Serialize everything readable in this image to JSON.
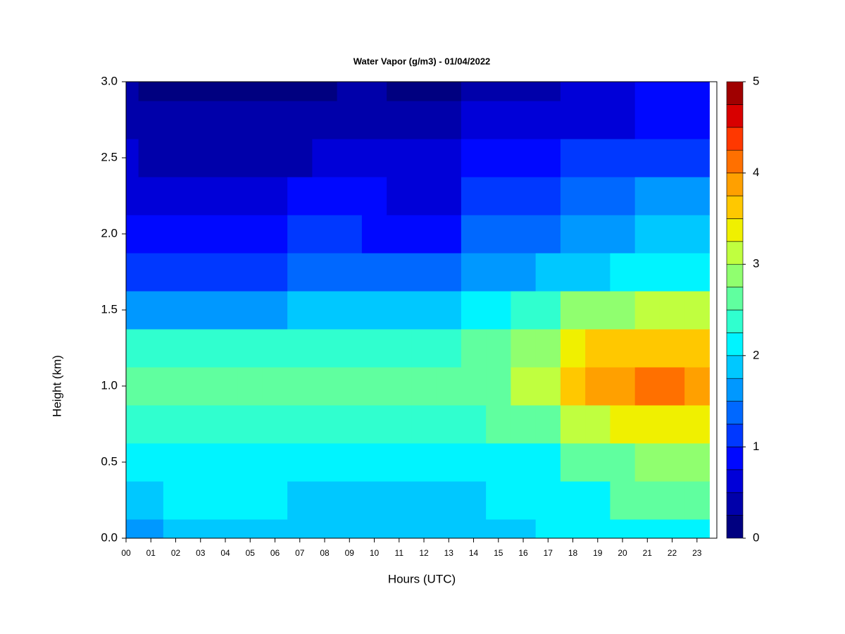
{
  "chart_data": {
    "type": "contour",
    "title": "Water Vapor (g/m3) - 01/04/2022",
    "x_label": "Hours (UTC)",
    "y_label": "Height (km)",
    "x": [
      0,
      1,
      2,
      3,
      4,
      5,
      6,
      7,
      8,
      9,
      10,
      11,
      12,
      13,
      14,
      15,
      16,
      17,
      18,
      19,
      20,
      21,
      22,
      23
    ],
    "y": [
      0,
      0.25,
      0.5,
      0.75,
      1,
      1.25,
      1.5,
      1.75,
      2,
      2.25,
      2.5,
      2.75,
      3
    ],
    "z": [
      [
        1.6,
        1.6,
        1.85,
        1.85,
        1.85,
        1.85,
        1.85,
        1.75,
        1.75,
        1.75,
        1.75,
        1.75,
        1.75,
        1.75,
        1.75,
        1.75,
        1.75,
        2.1,
        2.1,
        2.1,
        2.1,
        2.1,
        2.1,
        2.1
      ],
      [
        1.8,
        1.8,
        2.1,
        2.1,
        2.1,
        2.1,
        2.1,
        1.95,
        1.95,
        1.95,
        1.95,
        1.95,
        1.95,
        1.95,
        1.95,
        2.0,
        2.05,
        2.2,
        2.2,
        2.2,
        2.5,
        2.5,
        2.5,
        2.5
      ],
      [
        2.2,
        2.2,
        2.2,
        2.2,
        2.2,
        2.2,
        2.2,
        2.05,
        2.05,
        2.05,
        2.05,
        2.05,
        2.05,
        2.05,
        2.05,
        2.2,
        2.2,
        2.2,
        2.5,
        2.5,
        2.5,
        2.8,
        2.8,
        2.8
      ],
      [
        2.4,
        2.4,
        2.4,
        2.4,
        2.4,
        2.4,
        2.4,
        2.3,
        2.3,
        2.3,
        2.3,
        2.3,
        2.3,
        2.3,
        2.3,
        2.5,
        2.7,
        2.7,
        3.1,
        3.1,
        3.4,
        3.4,
        3.4,
        3.4
      ],
      [
        2.6,
        2.6,
        2.6,
        2.6,
        2.6,
        2.6,
        2.6,
        2.5,
        2.5,
        2.5,
        2.5,
        2.5,
        2.5,
        2.5,
        2.7,
        2.7,
        3.0,
        3.0,
        3.6,
        3.9,
        3.9,
        4.2,
        4.0,
        3.9
      ],
      [
        2.3,
        2.3,
        2.3,
        2.3,
        2.3,
        2.3,
        2.3,
        2.3,
        2.3,
        2.3,
        2.3,
        2.3,
        2.3,
        2.3,
        2.5,
        2.5,
        2.8,
        2.8,
        3.4,
        3.7,
        3.7,
        3.7,
        3.6,
        3.6
      ],
      [
        1.7,
        1.7,
        1.7,
        1.7,
        1.7,
        1.7,
        1.7,
        1.9,
        1.9,
        1.9,
        1.9,
        1.9,
        1.9,
        1.9,
        2.1,
        2.1,
        2.4,
        2.4,
        2.8,
        2.8,
        2.8,
        3.0,
        3.0,
        3.0
      ],
      [
        1.1,
        1.1,
        1.1,
        1.1,
        1.1,
        1.1,
        1.1,
        1.4,
        1.4,
        1.4,
        1.4,
        1.4,
        1.3,
        1.3,
        1.6,
        1.6,
        1.6,
        1.9,
        1.9,
        1.9,
        2.2,
        2.2,
        2.2,
        2.2
      ],
      [
        0.8,
        0.8,
        0.8,
        0.8,
        0.8,
        0.8,
        0.8,
        1.1,
        1.1,
        1.1,
        0.9,
        0.9,
        0.9,
        0.9,
        1.3,
        1.3,
        1.3,
        1.3,
        1.6,
        1.6,
        1.6,
        1.8,
        1.8,
        1.8
      ],
      [
        0.6,
        0.6,
        0.6,
        0.6,
        0.6,
        0.6,
        0.6,
        0.9,
        0.9,
        0.9,
        0.9,
        0.7,
        0.7,
        0.7,
        1.1,
        1.1,
        1.1,
        1.1,
        1.3,
        1.3,
        1.3,
        1.5,
        1.5,
        1.5
      ],
      [
        0.6,
        0.45,
        0.45,
        0.45,
        0.45,
        0.45,
        0.45,
        0.45,
        0.65,
        0.65,
        0.5,
        0.5,
        0.5,
        0.5,
        0.85,
        0.85,
        0.85,
        0.85,
        1.0,
        1.0,
        1.0,
        1.2,
        1.2,
        1.2
      ],
      [
        0.4,
        0.25,
        0.25,
        0.25,
        0.25,
        0.25,
        0.25,
        0.25,
        0.4,
        0.4,
        0.3,
        0.3,
        0.3,
        0.3,
        0.55,
        0.55,
        0.55,
        0.55,
        0.7,
        0.7,
        0.7,
        0.85,
        0.95,
        0.9
      ],
      [
        0.35,
        0.2,
        0.2,
        0.2,
        0.2,
        0.2,
        0.2,
        0.2,
        0.2,
        0.35,
        0.35,
        0.2,
        0.2,
        0.2,
        0.45,
        0.45,
        0.45,
        0.45,
        0.55,
        0.55,
        0.55,
        0.75,
        0.75,
        0.75
      ]
    ],
    "levels": [
      0,
      0.25,
      0.5,
      0.75,
      1,
      1.25,
      1.5,
      1.75,
      2,
      2.25,
      2.5,
      2.75,
      3,
      3.25,
      3.5,
      3.75,
      4,
      4.25,
      4.5,
      4.75,
      5
    ],
    "colors": [
      "#000080",
      "#0000AA",
      "#0000D8",
      "#0008FF",
      "#0038FF",
      "#0068FF",
      "#0098FF",
      "#00C8FF",
      "#00F4FF",
      "#30FFCF",
      "#60FF9F",
      "#90FF6F",
      "#C0FF3F",
      "#F0F000",
      "#FFC800",
      "#FFA000",
      "#FF7000",
      "#FF3800",
      "#D80000",
      "#A00000"
    ],
    "colorbar_ticks": [
      0,
      1,
      2,
      3,
      4,
      5
    ],
    "xlim": [
      0,
      23.8
    ],
    "ylim": [
      0,
      3
    ],
    "xticks": [
      {
        "value": 0,
        "label": "00"
      },
      {
        "value": 1,
        "label": "01"
      },
      {
        "value": 2,
        "label": "02"
      },
      {
        "value": 3,
        "label": "03"
      },
      {
        "value": 4,
        "label": "04"
      },
      {
        "value": 5,
        "label": "05"
      },
      {
        "value": 6,
        "label": "06"
      },
      {
        "value": 7,
        "label": "07"
      },
      {
        "value": 8,
        "label": "08"
      },
      {
        "value": 9,
        "label": "09"
      },
      10,
      11,
      12,
      13,
      14,
      15,
      16,
      17,
      18,
      19,
      20,
      21,
      22,
      23
    ],
    "yticks": [
      {
        "value": 0,
        "label": "0.0"
      },
      0.5,
      {
        "value": 1,
        "label": "1.0"
      },
      1.5,
      {
        "value": 2,
        "label": "2.0"
      },
      2.5,
      {
        "value": 3,
        "label": "3.0"
      }
    ]
  }
}
